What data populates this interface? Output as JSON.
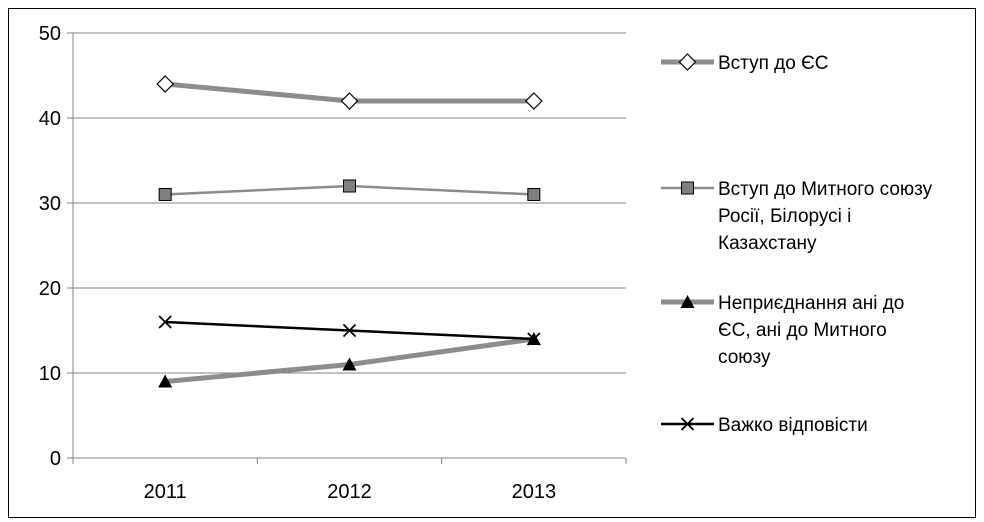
{
  "chart_data": {
    "type": "line",
    "title": "",
    "xlabel": "",
    "ylabel": "",
    "categories": [
      "2011",
      "2012",
      "2013"
    ],
    "ylim": [
      0,
      50
    ],
    "yticks": [
      0,
      10,
      20,
      30,
      40,
      50
    ],
    "grid": "horizontal",
    "legend_position": "right",
    "series": [
      {
        "name": "Вступ до ЄС",
        "legend_lines": [
          "Вступ до ЄС"
        ],
        "values": [
          44,
          42,
          42
        ],
        "color": "#8c8c8c",
        "marker": "diamond-open",
        "line_width": "thick"
      },
      {
        "name": "Вступ до Митного союзу Росії, Білорусі і Казахстану",
        "legend_lines": [
          "Вступ до Митного союзу",
          "Росії, Білорусі і",
          "Казахстану"
        ],
        "values": [
          31,
          32,
          31
        ],
        "color": "#8c8c8c",
        "marker_color": "#7f7f7f",
        "marker": "square",
        "line_width": "thin"
      },
      {
        "name": "Неприєднання ані до ЄС, ані до Митного союзу",
        "legend_lines": [
          "Неприєднання ані до",
          "ЄС, ані до Митного",
          "союзу"
        ],
        "values": [
          9,
          11,
          14
        ],
        "color": "#8c8c8c",
        "marker_color": "#000000",
        "marker": "triangle",
        "line_width": "thick"
      },
      {
        "name": "Важко відповісти",
        "legend_lines": [
          "Важко відповісти"
        ],
        "values": [
          16,
          15,
          14
        ],
        "color": "#000000",
        "marker": "x",
        "line_width": "thin"
      }
    ]
  }
}
